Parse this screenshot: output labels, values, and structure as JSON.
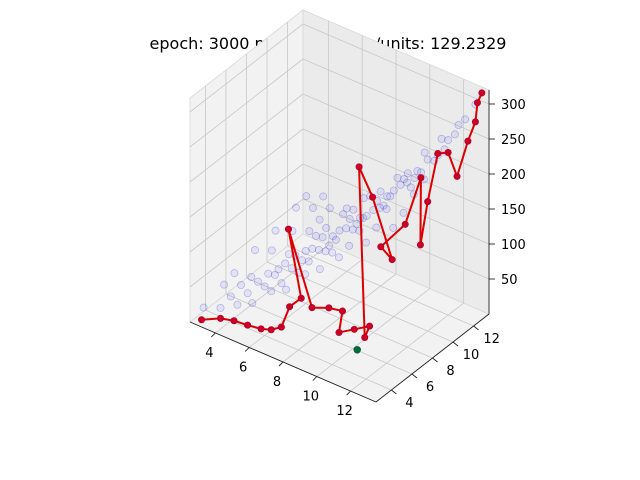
{
  "figure": {
    "title": "epoch: 3000 n: 32 error/dim/units: 129.2329"
  },
  "colors": {
    "pane": "#f2f2f2",
    "pane_edge": "#d8d8d8",
    "grid": "#c8c8c8",
    "cloud": "#2222dd",
    "path_line": "#dd0000",
    "path_marker": "#cc0022",
    "target_marker": "#006b3c"
  },
  "chart_data": {
    "type": "scatter",
    "projection": "3d",
    "title": "epoch: 3000 n: 32 error/dim/units: 129.2329",
    "xlabel": "",
    "ylabel": "",
    "zlabel": "",
    "xlim": [
      2.5,
      13.5
    ],
    "ylim": [
      2.5,
      13.5
    ],
    "zlim": [
      0,
      320
    ],
    "xticks": [
      4,
      6,
      8,
      10,
      12
    ],
    "yticks": [
      4,
      6,
      8,
      10,
      12
    ],
    "zticks": [
      50,
      100,
      150,
      200,
      250,
      300
    ],
    "grid": true,
    "legend": false,
    "series": [
      {
        "kind": "cloud",
        "description": "faint blue background sample points",
        "points": [
          [
            3,
            3,
            20
          ],
          [
            4,
            4,
            35
          ],
          [
            4,
            6,
            40
          ],
          [
            5,
            3,
            45
          ],
          [
            5,
            5,
            55
          ],
          [
            5,
            7,
            50
          ],
          [
            6,
            4,
            70
          ],
          [
            6,
            6,
            80
          ],
          [
            6,
            8,
            75
          ],
          [
            7,
            3,
            85
          ],
          [
            7,
            5,
            95
          ],
          [
            7,
            7,
            100
          ],
          [
            7,
            9,
            95
          ],
          [
            8,
            4,
            110
          ],
          [
            8,
            6,
            120
          ],
          [
            8,
            8,
            125
          ],
          [
            8,
            10,
            120
          ],
          [
            9,
            3,
            130
          ],
          [
            9,
            5,
            140
          ],
          [
            9,
            7,
            150
          ],
          [
            9,
            9,
            145
          ],
          [
            9,
            11,
            150
          ],
          [
            10,
            4,
            160
          ],
          [
            10,
            6,
            170
          ],
          [
            10,
            8,
            175
          ],
          [
            10,
            10,
            180
          ],
          [
            10,
            12,
            175
          ],
          [
            11,
            5,
            190
          ],
          [
            11,
            7,
            200
          ],
          [
            11,
            9,
            210
          ],
          [
            11,
            11,
            205
          ],
          [
            12,
            6,
            220
          ],
          [
            12,
            8,
            235
          ],
          [
            12,
            10,
            245
          ],
          [
            12,
            12,
            250
          ],
          [
            13,
            9,
            265
          ],
          [
            13,
            11,
            280
          ],
          [
            13,
            13,
            300
          ],
          [
            3,
            5,
            30
          ],
          [
            4,
            8,
            55
          ],
          [
            5,
            10,
            70
          ],
          [
            6,
            12,
            90
          ],
          [
            6,
            10,
            85
          ],
          [
            7,
            11,
            110
          ],
          [
            8,
            12,
            135
          ],
          [
            9,
            13,
            160
          ],
          [
            3,
            8,
            45
          ],
          [
            4,
            10,
            60
          ],
          [
            5,
            12,
            80
          ],
          [
            11,
            3,
            175
          ],
          [
            12,
            4,
            195
          ],
          [
            13,
            5,
            215
          ],
          [
            13,
            7,
            240
          ],
          [
            10,
            2.8,
            150
          ],
          [
            8,
            2.8,
            100
          ],
          [
            6,
            2.8,
            60
          ],
          [
            4,
            12,
            70
          ],
          [
            3,
            10,
            50
          ],
          [
            5,
            8,
            60
          ],
          [
            7,
            12,
            115
          ],
          [
            11,
            13,
            230
          ],
          [
            12,
            13,
            260
          ],
          [
            8,
            9,
            130
          ],
          [
            9,
            8,
            145
          ],
          [
            10,
            9,
            170
          ],
          [
            11,
            10,
            195
          ],
          [
            6,
            5,
            75
          ],
          [
            5,
            6,
            55
          ],
          [
            4,
            5,
            40
          ],
          [
            7,
            4,
            85
          ],
          [
            3,
            6,
            35
          ],
          [
            3,
            12,
            60
          ],
          [
            10,
            13,
            200
          ],
          [
            12,
            11,
            240
          ],
          [
            13,
            12,
            290
          ],
          [
            9,
            10,
            155
          ],
          [
            7,
            6,
            95
          ],
          [
            8,
            7,
            115
          ],
          [
            6,
            9,
            85
          ],
          [
            5,
            11,
            75
          ],
          [
            4,
            13,
            75
          ],
          [
            3,
            13,
            65
          ],
          [
            11,
            4,
            180
          ],
          [
            12,
            5,
            205
          ],
          [
            13,
            6,
            225
          ],
          [
            13,
            8,
            250
          ],
          [
            13,
            10,
            270
          ],
          [
            12,
            9,
            240
          ],
          [
            11,
            8,
            205
          ],
          [
            10,
            7,
            175
          ],
          [
            9,
            6,
            145
          ],
          [
            8,
            5,
            115
          ],
          [
            7,
            8,
            105
          ],
          [
            6,
            7,
            80
          ],
          [
            5,
            4,
            50
          ],
          [
            4,
            3,
            30
          ],
          [
            10,
            11,
            185
          ],
          [
            9,
            12,
            165
          ],
          [
            8,
            11,
            140
          ],
          [
            7,
            10,
            115
          ]
        ]
      },
      {
        "kind": "path",
        "description": "red connected path with markers",
        "points": [
          [
            3,
            2.8,
            5
          ],
          [
            4,
            3,
            15
          ],
          [
            4.8,
            3,
            20
          ],
          [
            5.6,
            3,
            22
          ],
          [
            6.4,
            3,
            25
          ],
          [
            7,
            3,
            30
          ],
          [
            7.6,
            3,
            40
          ],
          [
            7.6,
            3.8,
            60
          ],
          [
            7.8,
            4.6,
            65
          ],
          [
            6.5,
            5.5,
            140
          ],
          [
            8.5,
            4.5,
            60
          ],
          [
            9.5,
            4.5,
            70
          ],
          [
            10,
            5,
            65
          ],
          [
            10.4,
            4,
            50
          ],
          [
            11,
            4.5,
            55
          ],
          [
            11.6,
            5,
            60
          ],
          [
            11.8,
            4.2,
            55
          ],
          [
            9.4,
            7.6,
            235
          ],
          [
            10.2,
            7.6,
            200
          ],
          [
            11.6,
            7.2,
            130
          ],
          [
            10.2,
            8.4,
            120
          ],
          [
            11.4,
            8.8,
            160
          ],
          [
            11.6,
            10,
            215
          ],
          [
            12.3,
            8.8,
            140
          ],
          [
            12,
            10,
            185
          ],
          [
            12.6,
            10,
            260
          ],
          [
            12.6,
            11,
            250
          ],
          [
            12.4,
            12.2,
            200
          ],
          [
            12.8,
            12.6,
            250
          ],
          [
            13,
            13,
            275
          ],
          [
            13,
            13.2,
            300
          ],
          [
            13.2,
            13.3,
            315
          ]
        ]
      },
      {
        "kind": "target",
        "description": "single green marker",
        "points": [
          [
            11.6,
            3.8,
            40
          ]
        ]
      }
    ]
  }
}
